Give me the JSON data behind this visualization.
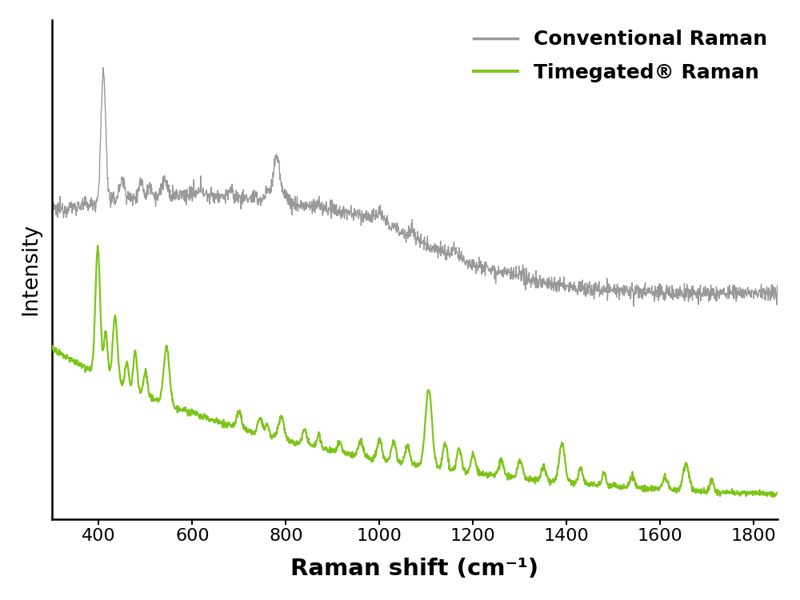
{
  "xlim": [
    300,
    1850
  ],
  "xlabel": "Raman shift (cm⁻¹)",
  "ylabel": "Intensity",
  "xlabel_fontsize": 21,
  "ylabel_fontsize": 19,
  "tick_fontsize": 16,
  "xticks": [
    400,
    600,
    800,
    1000,
    1200,
    1400,
    1600,
    1800
  ],
  "legend_labels": [
    "Conventional Raman",
    "Timegated® Raman"
  ],
  "legend_fontsize": 18,
  "gray_color": "#999999",
  "green_color": "#7dc418",
  "background_color": "#ffffff",
  "linewidth_gray": 1.0,
  "linewidth_green": 1.6
}
